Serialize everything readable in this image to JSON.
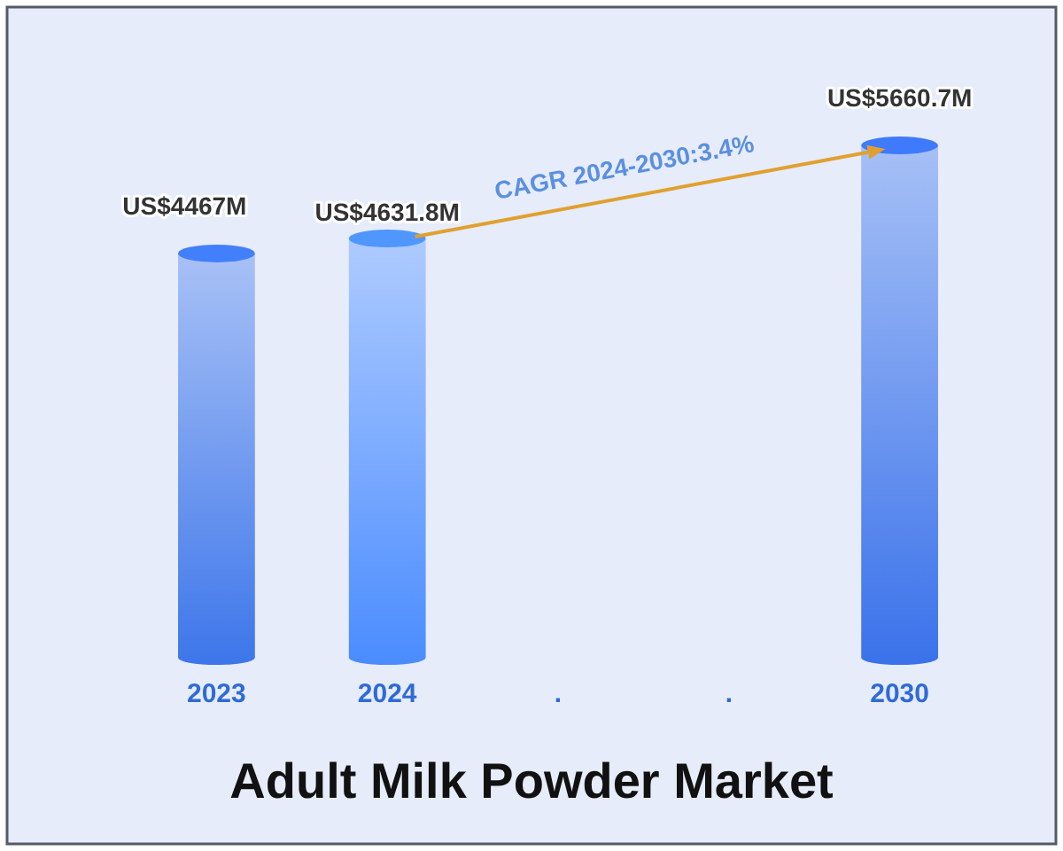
{
  "chart_data": {
    "type": "bar",
    "title": "Adult Milk Powder Market",
    "categories": [
      "2023",
      "2024",
      ".",
      ".",
      "2030"
    ],
    "values": [
      4467000000,
      4631800000,
      null,
      null,
      5660700000
    ],
    "colors": [
      "#3d76ea",
      "#4a8cff",
      null,
      null,
      "#3a72ea"
    ],
    "value_labels": [
      "US$4467M",
      "US$4631.8M",
      null,
      null,
      "US$5660.7M"
    ],
    "annotations": [
      "CAGR 2024-2030:3.4%"
    ]
  }
}
